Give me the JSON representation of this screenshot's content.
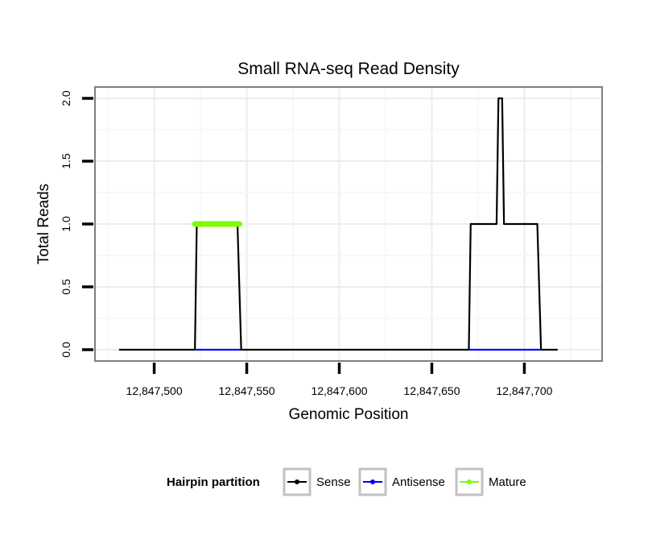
{
  "chart_data": {
    "type": "line",
    "title": "Small RNA-seq Read Density",
    "xlabel": "Genomic Position",
    "ylabel": "Total Reads",
    "xlim": [
      12847468,
      12847742
    ],
    "ylim": [
      -0.09,
      2.09
    ],
    "x_ticks": [
      12847500,
      12847550,
      12847600,
      12847650,
      12847700
    ],
    "x_tick_labels": [
      "12,847,500",
      "12,847,550",
      "12,847,600",
      "12,847,650",
      "12,847,700"
    ],
    "y_ticks": [
      0,
      0.5,
      1,
      1.5,
      2
    ],
    "y_tick_labels": [
      "0.0",
      "0.5",
      "1.0",
      "1.5",
      "2.0"
    ],
    "grid": true,
    "legend": {
      "title": "Hairpin partition",
      "position": "bottom",
      "items": [
        "Sense",
        "Antisense",
        "Mature"
      ]
    },
    "series": [
      {
        "name": "Sense",
        "color": "#000000",
        "x": [
          12847481,
          12847522,
          12847523,
          12847545,
          12847547,
          12847670,
          12847671,
          12847685,
          12847686,
          12847688,
          12847689,
          12847707,
          12847709,
          12847718
        ],
        "y": [
          0,
          0,
          1,
          1,
          0,
          0,
          1,
          1,
          2,
          2,
          1,
          1,
          0,
          0
        ]
      },
      {
        "name": "Antisense",
        "color": "#0000ff",
        "segments": [
          {
            "x": [
              12847522,
              12847547
            ],
            "y": [
              0,
              0
            ]
          },
          {
            "x": [
              12847670,
              12847709
            ],
            "y": [
              0,
              0
            ]
          }
        ]
      },
      {
        "name": "Mature",
        "color": "#7cfc00",
        "segments": [
          {
            "x": [
              12847522,
              12847546
            ],
            "y": [
              1,
              1
            ]
          }
        ]
      }
    ]
  }
}
